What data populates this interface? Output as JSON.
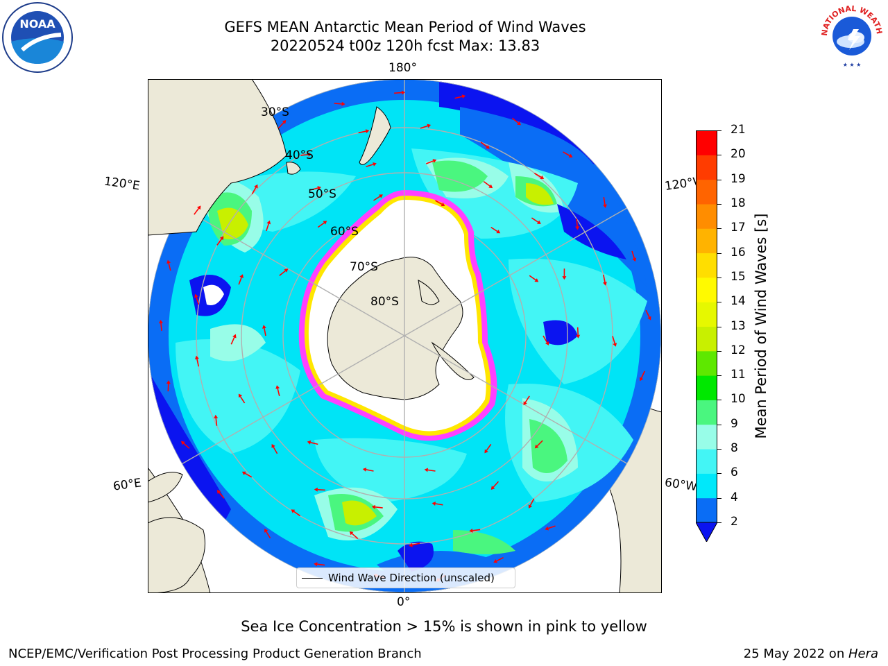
{
  "title": {
    "line1": "GEFS MEAN Antarctic Mean Period of Wind Waves",
    "line2": "20220524 t00z 120h fcst   Max: 13.83"
  },
  "longitude_labels": {
    "top": "180°",
    "bottom": "0°",
    "upper_left": "120°E",
    "upper_right": "120°W",
    "lower_left": "60°E",
    "lower_right": "60°W"
  },
  "latitude_labels": [
    "30°S",
    "40°S",
    "50°S",
    "60°S",
    "70°S",
    "80°S"
  ],
  "legend": {
    "label": "Wind Wave Direction (unscaled)"
  },
  "colorbar": {
    "label": "Mean Period of Wind Waves [s]",
    "ticks": [
      "2",
      "4",
      "6",
      "8",
      "9",
      "10",
      "11",
      "12",
      "13",
      "14",
      "15",
      "16",
      "17",
      "18",
      "19",
      "20",
      "21"
    ],
    "colors": [
      "#0a6df5",
      "#00e8fa",
      "#43f5f5",
      "#98fde8",
      "#4af67f",
      "#00e800",
      "#5ee800",
      "#c8f000",
      "#e6f800",
      "#fffa00",
      "#ffde00",
      "#ffb300",
      "#ff8d00",
      "#ff6400",
      "#ff3c00",
      "#ff0000"
    ],
    "extend_color": "#0b14f0"
  },
  "note": "Sea Ice Concentration > 15% is shown in pink to yellow",
  "footer": {
    "left": "NCEP/EMC/Verification Post Processing Product Generation Branch",
    "right_prefix": "25 May 2022 on ",
    "right_host": "Hera"
  },
  "colors": {
    "land": "#ece9d8",
    "ocean_base": "#00e4f6",
    "arrow": "#ff0000",
    "sea_ice_edge": "#ff40ff",
    "graticule": "#b0b0b0"
  },
  "icons": {
    "noaa": "noaa-logo",
    "nws": "national-weather-service-logo"
  },
  "nws_logo_text": "NATIONAL WEATHER SERVICE",
  "noaa_logo_text": "NOAA"
}
